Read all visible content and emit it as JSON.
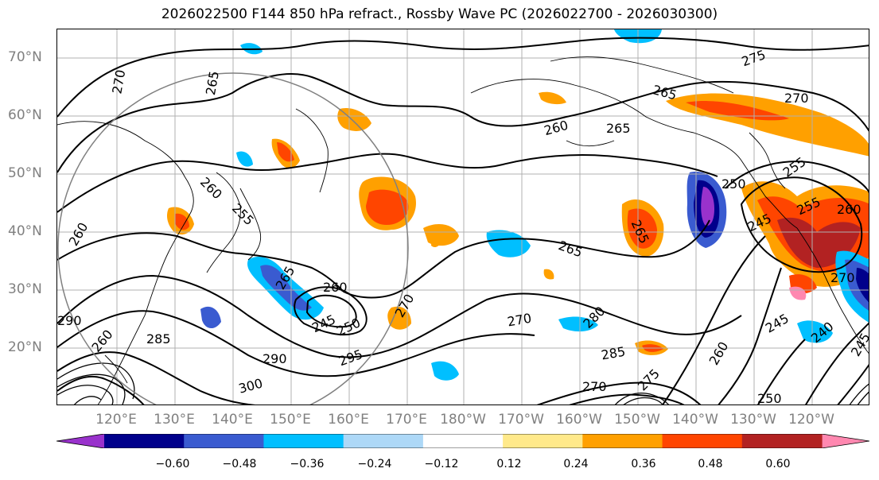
{
  "title": "2026022500 F144 850 hPa refract., Rossby Wave PC (2026022700 - 2026030300)",
  "map": {
    "projection": "cylindrical",
    "lon_range": [
      "110°E",
      "110°W"
    ],
    "lat_range": [
      10,
      75
    ],
    "gridlines": true,
    "lat_labels": [
      "70°N",
      "60°N",
      "50°N",
      "40°N",
      "30°N",
      "20°N"
    ],
    "lon_labels": [
      "120°E",
      "130°E",
      "140°E",
      "150°E",
      "160°E",
      "170°E",
      "180°W",
      "170°W",
      "160°W",
      "150°W",
      "140°W",
      "130°W",
      "120°W"
    ],
    "contour_labels": [
      "270",
      "265",
      "275",
      "265",
      "270",
      "260",
      "265",
      "255",
      "260",
      "255",
      "250",
      "245",
      "255",
      "260",
      "265",
      "260",
      "265",
      "265",
      "290",
      "285",
      "260",
      "250",
      "245",
      "270",
      "295",
      "290",
      "300",
      "270",
      "280",
      "285",
      "275",
      "270",
      "260",
      "245",
      "240",
      "245",
      "260",
      "250",
      "270"
    ]
  },
  "colorbar": {
    "extend": "both",
    "colors": [
      "#9932cc",
      "#00008b",
      "#3a5bd0",
      "#00bfff",
      "#add8f7",
      "#ffffff",
      "#ffe98a",
      "#ffa000",
      "#ff4500",
      "#b22222",
      "#ff88b0"
    ],
    "ticks": [
      "−0.60",
      "−0.48",
      "−0.36",
      "−0.24",
      "−0.12",
      "0.12",
      "0.24",
      "0.36",
      "0.48",
      "0.60"
    ]
  },
  "colors": {
    "grid": "#b0b0b0",
    "contour": "#000000",
    "axis_text": "#808080",
    "circle": "#808080"
  }
}
